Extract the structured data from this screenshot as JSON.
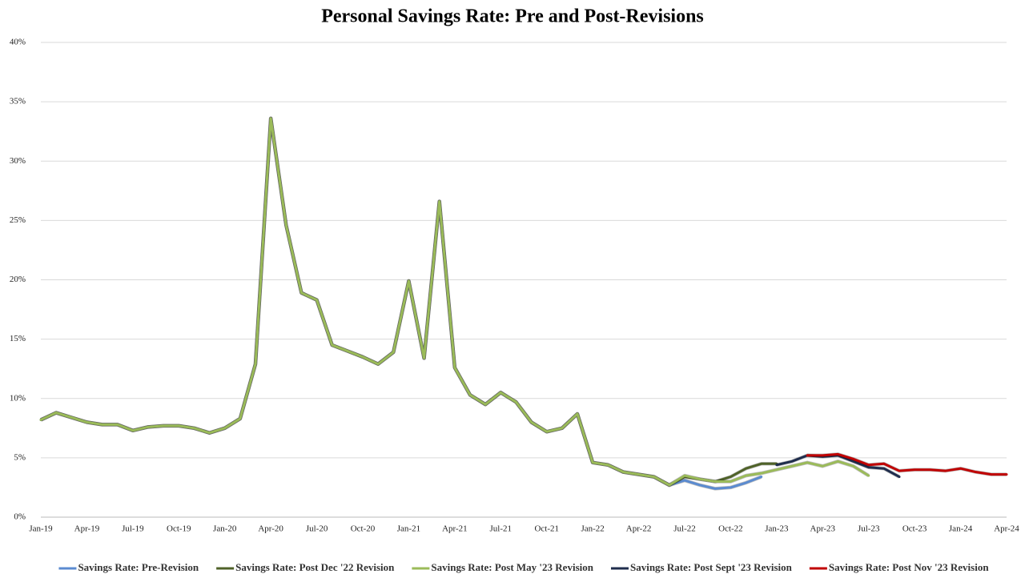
{
  "chart_data": {
    "type": "line",
    "title": "Personal Savings Rate: Pre and Post-Revisions",
    "categories": [
      "Jan-19",
      null,
      null,
      "Apr-19",
      null,
      null,
      "Jul-19",
      null,
      null,
      "Oct-19",
      null,
      null,
      "Jan-20",
      null,
      null,
      "Apr-20",
      null,
      null,
      "Jul-20",
      null,
      null,
      "Oct-20",
      null,
      null,
      "Jan-21",
      null,
      null,
      "Apr-21",
      null,
      null,
      "Jul-21",
      null,
      null,
      "Oct-21",
      null,
      null,
      "Jan-22",
      null,
      null,
      "Apr-22",
      null,
      null,
      "Jul-22",
      null,
      null,
      "Oct-22",
      null,
      null,
      "Jan-23",
      null,
      null,
      "Apr-23",
      null,
      null,
      "Jul-23",
      null,
      null,
      "Oct-23",
      null,
      null,
      "Jan-24",
      null,
      null,
      "Apr-24"
    ],
    "ylim": [
      0,
      40
    ],
    "yticks": [
      {
        "value": 0,
        "label": "0%"
      },
      {
        "value": 5,
        "label": "5%"
      },
      {
        "value": 10,
        "label": "10%"
      },
      {
        "value": 15,
        "label": "15%"
      },
      {
        "value": 20,
        "label": "20%"
      },
      {
        "value": 25,
        "label": "25%"
      },
      {
        "value": 30,
        "label": "30%"
      },
      {
        "value": 35,
        "label": "35%"
      },
      {
        "value": 40,
        "label": "40%"
      }
    ],
    "grid": true,
    "legend": "bottom",
    "series": [
      {
        "name": "Savings Rate: Pre-Revision",
        "color": "#5b8bd0",
        "values": [
          8.2,
          8.8,
          8.4,
          8.0,
          7.8,
          7.8,
          7.3,
          7.6,
          7.7,
          7.7,
          7.5,
          7.1,
          7.5,
          8.3,
          12.9,
          33.6,
          24.6,
          18.9,
          18.3,
          14.5,
          14.0,
          13.5,
          12.9,
          13.9,
          19.9,
          13.4,
          26.6,
          12.6,
          10.3,
          9.5,
          10.5,
          9.7,
          8.0,
          7.2,
          7.5,
          8.7,
          4.6,
          4.4,
          3.8,
          3.6,
          3.4,
          2.7,
          3.1,
          2.7,
          2.4,
          2.5,
          2.9,
          3.4,
          null,
          null,
          null,
          null,
          null,
          null,
          null,
          null,
          null,
          null,
          null,
          null,
          null,
          null,
          null,
          null
        ]
      },
      {
        "name": "Savings Rate: Post Dec '22 Revision",
        "color": "#4f6228",
        "values": [
          8.2,
          8.8,
          8.4,
          8.0,
          7.8,
          7.8,
          7.3,
          7.6,
          7.7,
          7.7,
          7.5,
          7.1,
          7.5,
          8.3,
          12.9,
          33.6,
          24.6,
          18.9,
          18.3,
          14.5,
          14.0,
          13.5,
          12.9,
          13.9,
          19.9,
          13.4,
          26.6,
          12.6,
          10.3,
          9.5,
          10.5,
          9.7,
          8.0,
          7.2,
          7.5,
          8.7,
          4.6,
          4.4,
          3.8,
          3.6,
          3.4,
          2.7,
          3.4,
          3.2,
          3.0,
          3.4,
          4.1,
          4.5,
          4.5,
          null,
          null,
          null,
          null,
          null,
          null,
          null,
          null,
          null,
          null,
          null,
          null,
          null,
          null,
          null
        ]
      },
      {
        "name": "Savings Rate: Post May '23 Revision",
        "color": "#9bbb59",
        "values": [
          8.2,
          8.8,
          8.4,
          8.0,
          7.8,
          7.8,
          7.3,
          7.6,
          7.7,
          7.7,
          7.5,
          7.1,
          7.5,
          8.3,
          12.9,
          33.6,
          24.6,
          18.9,
          18.3,
          14.5,
          14.0,
          13.5,
          12.9,
          13.9,
          19.9,
          13.4,
          26.6,
          12.6,
          10.3,
          9.5,
          10.5,
          9.7,
          8.0,
          7.2,
          7.5,
          8.7,
          4.6,
          4.4,
          3.8,
          3.6,
          3.4,
          2.7,
          3.5,
          3.2,
          3.0,
          3.0,
          3.5,
          3.7,
          4.0,
          4.3,
          4.6,
          4.3,
          4.7,
          4.3,
          3.5,
          null,
          null,
          null,
          null,
          null,
          null,
          null,
          null,
          null
        ]
      },
      {
        "name": "Savings Rate: Post Sept '23 Revision",
        "color": "#1f2d4d",
        "values": [
          null,
          null,
          null,
          null,
          null,
          null,
          null,
          null,
          null,
          null,
          null,
          null,
          null,
          null,
          null,
          null,
          null,
          null,
          null,
          null,
          null,
          null,
          null,
          null,
          null,
          null,
          null,
          null,
          null,
          null,
          null,
          null,
          null,
          null,
          null,
          null,
          null,
          null,
          null,
          null,
          null,
          null,
          null,
          null,
          null,
          null,
          null,
          null,
          4.4,
          4.7,
          5.2,
          5.1,
          5.2,
          4.7,
          4.2,
          4.1,
          3.4,
          null,
          null,
          null,
          null,
          null,
          null,
          null
        ]
      },
      {
        "name": "Savings Rate: Post Nov '23 Revision",
        "color": "#c00000",
        "values": [
          null,
          null,
          null,
          null,
          null,
          null,
          null,
          null,
          null,
          null,
          null,
          null,
          null,
          null,
          null,
          null,
          null,
          null,
          null,
          null,
          null,
          null,
          null,
          null,
          null,
          null,
          null,
          null,
          null,
          null,
          null,
          null,
          null,
          null,
          null,
          null,
          null,
          null,
          null,
          null,
          null,
          null,
          null,
          null,
          null,
          null,
          null,
          null,
          null,
          null,
          5.2,
          5.2,
          5.3,
          4.9,
          4.4,
          4.5,
          3.9,
          4.0,
          4.0,
          3.9,
          4.1,
          3.8,
          3.6,
          3.6
        ]
      }
    ]
  }
}
